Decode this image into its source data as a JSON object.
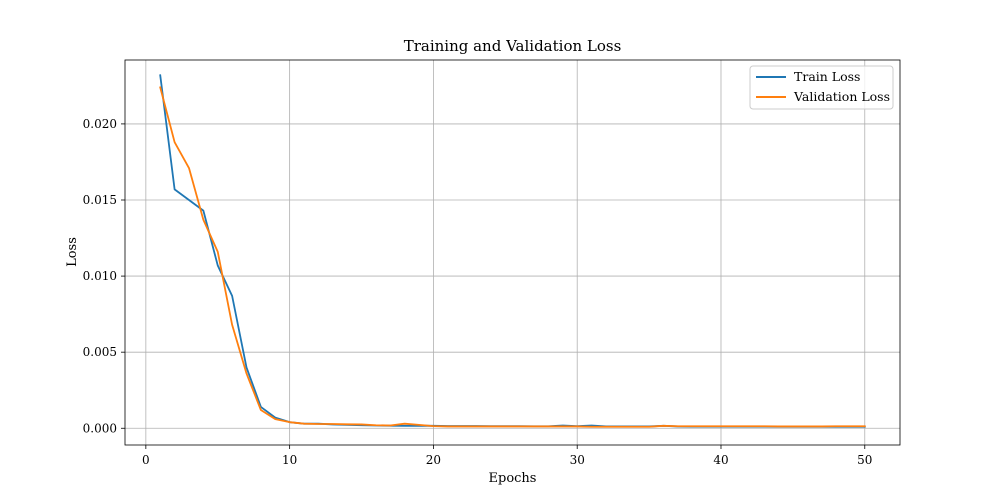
{
  "chart_data": {
    "type": "line",
    "title": "Training and Validation Loss",
    "xlabel": "Epochs",
    "ylabel": "Loss",
    "xlim": [
      -1.45,
      52.45
    ],
    "ylim": [
      -0.0011,
      0.0242
    ],
    "xticks": [
      0,
      10,
      20,
      30,
      40,
      50
    ],
    "yticks": [
      0.0,
      0.005,
      0.01,
      0.015,
      0.02
    ],
    "ytick_labels": [
      "0.000",
      "0.005",
      "0.010",
      "0.015",
      "0.020"
    ],
    "grid": true,
    "legend_position": "top-right",
    "x": [
      1,
      2,
      3,
      4,
      5,
      6,
      7,
      8,
      9,
      10,
      11,
      12,
      13,
      14,
      15,
      16,
      17,
      18,
      19,
      20,
      21,
      22,
      23,
      24,
      25,
      26,
      27,
      28,
      29,
      30,
      31,
      32,
      33,
      34,
      35,
      36,
      37,
      38,
      39,
      40,
      41,
      42,
      43,
      44,
      45,
      46,
      47,
      48,
      49,
      50
    ],
    "series": [
      {
        "name": "Train Loss",
        "color": "#1f77b4",
        "values": [
          0.0232,
          0.0157,
          0.015,
          0.0143,
          0.0107,
          0.0087,
          0.004,
          0.0014,
          0.0007,
          0.0004,
          0.0003,
          0.0003,
          0.00025,
          0.00022,
          0.0002,
          0.00018,
          0.00017,
          0.00016,
          0.00017,
          0.00016,
          0.00015,
          0.00015,
          0.00015,
          0.00014,
          0.00014,
          0.00014,
          0.00013,
          0.00013,
          0.00018,
          0.00014,
          0.00018,
          0.00012,
          0.00012,
          0.00012,
          0.00012,
          0.00016,
          0.00012,
          0.00011,
          0.00011,
          0.00011,
          0.00011,
          0.00011,
          0.00011,
          0.0001,
          0.0001,
          0.0001,
          0.0001,
          0.0001,
          0.0001,
          0.0001
        ]
      },
      {
        "name": "Validation Loss",
        "color": "#ff7f0e",
        "values": [
          0.0224,
          0.0188,
          0.0171,
          0.0137,
          0.0116,
          0.0068,
          0.0036,
          0.0012,
          0.0006,
          0.0004,
          0.0003,
          0.00028,
          0.00028,
          0.00026,
          0.00025,
          0.0002,
          0.00018,
          0.0003,
          0.00022,
          0.00014,
          0.00012,
          0.00012,
          0.00012,
          0.00012,
          0.00012,
          0.00012,
          0.00012,
          0.00012,
          0.00012,
          0.00012,
          0.0001,
          0.0001,
          0.0001,
          0.0001,
          0.0001,
          0.00016,
          0.00013,
          0.00013,
          0.00013,
          0.00013,
          0.00013,
          0.00013,
          0.00013,
          0.00012,
          0.00012,
          0.00012,
          0.00012,
          0.00013,
          0.00013,
          0.00013
        ]
      }
    ]
  }
}
